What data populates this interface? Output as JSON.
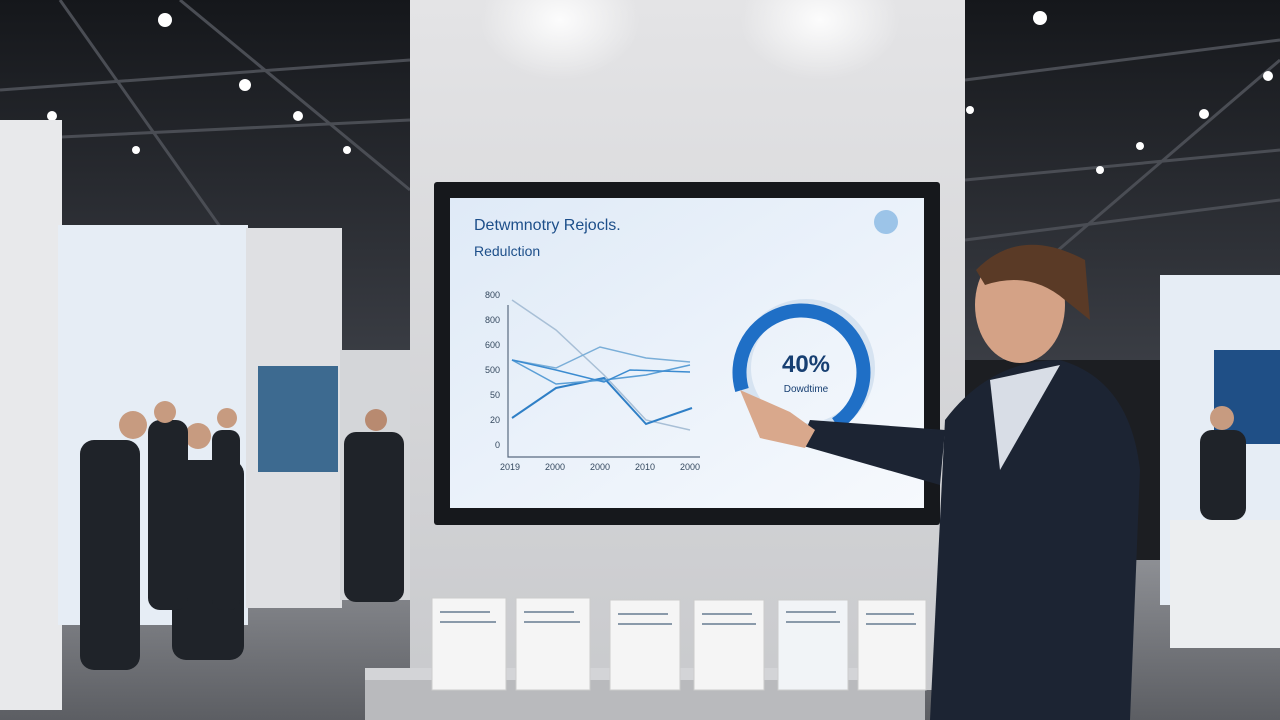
{
  "screen": {
    "title": "Detwmnotry Rejocls.",
    "subtitle": "Redulction",
    "y_labels": [
      "800",
      "800",
      "600",
      "500",
      "50",
      "20",
      "0"
    ],
    "x_labels": [
      "2019",
      "2000",
      "2000",
      "2010",
      "2000"
    ],
    "gauge_value": "40%",
    "gauge_label": "Dowdtime"
  }
}
